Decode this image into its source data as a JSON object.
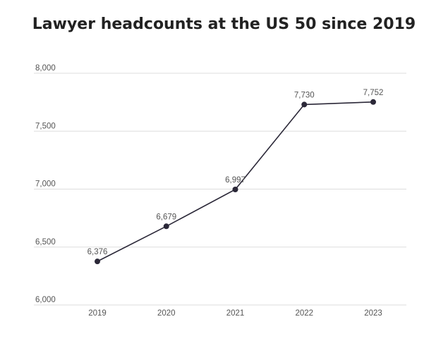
{
  "chart_data": {
    "type": "line",
    "title": "Lawyer headcounts at the US 50 since 2019",
    "xlabel": "",
    "ylabel": "",
    "categories": [
      "2019",
      "2020",
      "2021",
      "2022",
      "2023"
    ],
    "series": [
      {
        "values": [
          6376,
          6679,
          6997,
          7730,
          7752
        ],
        "labels": [
          "6,376",
          "6,679",
          "6,997",
          "7,730",
          "7,752"
        ]
      }
    ],
    "ylim": [
      6000,
      8000
    ],
    "yticks": [
      6000,
      6500,
      7000,
      7500,
      8000
    ],
    "ytick_labels": [
      "6,000",
      "6,500",
      "7,000",
      "7,500",
      "8,000"
    ],
    "grid": true,
    "legend": "none",
    "colors": {
      "line": "#2b2838",
      "marker": "#2b2838",
      "grid": "#dddddd",
      "text": "#555555",
      "title": "#222222"
    }
  }
}
